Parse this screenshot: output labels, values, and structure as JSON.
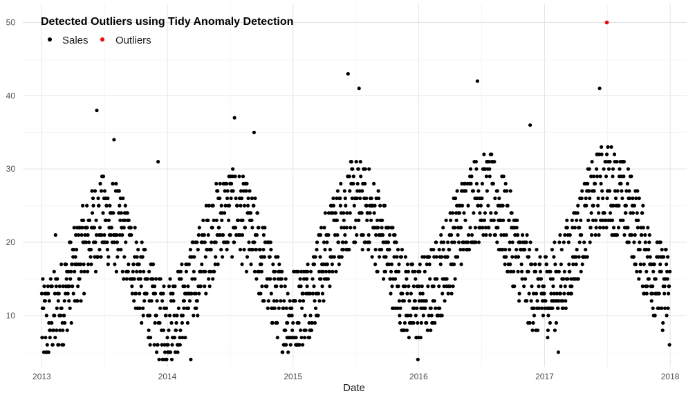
{
  "chart_data": {
    "type": "scatter",
    "title": "Detected Outliers using Tidy Anomaly Detection",
    "xlabel": "Date",
    "ylabel": "",
    "x_range": [
      "2012-11-07",
      "2018-02-18"
    ],
    "ylim": [
      3.0,
      52.5
    ],
    "x_ticks": [
      {
        "date": "2013-01-01",
        "label": "2013"
      },
      {
        "date": "2014-01-01",
        "label": "2014"
      },
      {
        "date": "2015-01-01",
        "label": "2015"
      },
      {
        "date": "2016-01-01",
        "label": "2016"
      },
      {
        "date": "2017-01-01",
        "label": "2017"
      },
      {
        "date": "2018-01-01",
        "label": "2018"
      }
    ],
    "y_ticks": [
      10,
      20,
      30,
      40,
      50
    ],
    "grid": true,
    "legend_position": "top-left",
    "series": [
      {
        "name": "Sales",
        "color": "#000000",
        "sample_points": [
          [
            "2013-01-01",
            13
          ],
          [
            "2013-01-16",
            5
          ],
          [
            "2013-02-10",
            21
          ],
          [
            "2013-06-10",
            38
          ],
          [
            "2013-07-30",
            34
          ],
          [
            "2013-12-05",
            31
          ],
          [
            "2013-12-25",
            5
          ],
          [
            "2014-03-10",
            4
          ],
          [
            "2014-07-15",
            37
          ],
          [
            "2014-09-10",
            35
          ],
          [
            "2015-01-10",
            7
          ],
          [
            "2015-06-10",
            43
          ],
          [
            "2015-07-12",
            41
          ],
          [
            "2015-12-30",
            4
          ],
          [
            "2016-06-20",
            42
          ],
          [
            "2016-11-20",
            36
          ],
          [
            "2017-02-10",
            5
          ],
          [
            "2017-06-10",
            41
          ],
          [
            "2017-12-30",
            6
          ]
        ]
      },
      {
        "name": "Outliers",
        "color": "#ff0000",
        "points": [
          [
            "2017-07-01",
            50
          ]
        ]
      }
    ]
  }
}
